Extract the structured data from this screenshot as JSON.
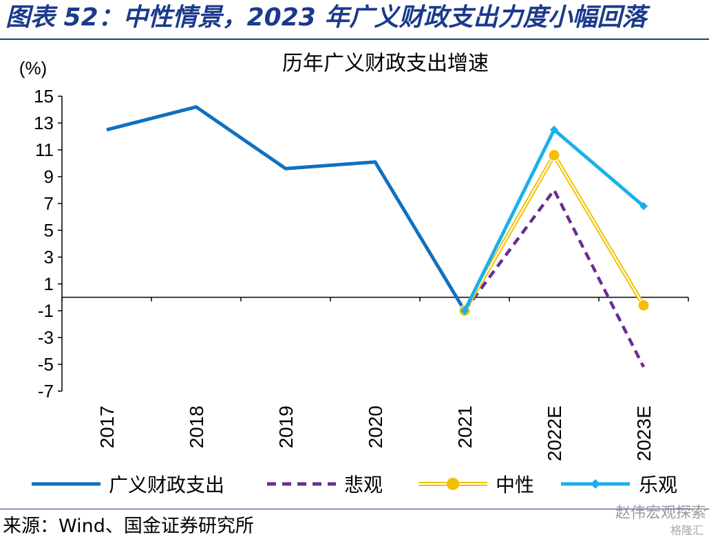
{
  "header": {
    "title": "图表 52：中性情景，2023 年广义财政支出力度小幅回落"
  },
  "footer": {
    "source": "来源：Wind、国金证券研究所",
    "watermark": "赵伟宏观探索",
    "watermark_sub": "格隆汇"
  },
  "chart_data": {
    "type": "line",
    "title": "历年广义财政支出增速",
    "ylabel": "(%)",
    "xlabel": "",
    "ylim": [
      -7,
      15
    ],
    "yticks": [
      15,
      13,
      11,
      9,
      7,
      5,
      3,
      1,
      -1,
      -3,
      -5,
      -7
    ],
    "categories": [
      "2017",
      "2018",
      "2019",
      "2020",
      "2021",
      "2022E",
      "2023E"
    ],
    "legend_position": "bottom",
    "series": [
      {
        "name": "广义财政支出",
        "color": "#1070c0",
        "style": "solid",
        "marker": "none",
        "values": [
          12.5,
          14.2,
          9.6,
          10.1,
          -1.0,
          null,
          null
        ]
      },
      {
        "name": "悲观",
        "color": "#6b2c91",
        "style": "dashed",
        "marker": "none",
        "values": [
          null,
          null,
          null,
          null,
          -1.0,
          8.0,
          -5.2
        ]
      },
      {
        "name": "中性",
        "color": "#f2c000",
        "style": "double",
        "marker": "circle",
        "values": [
          null,
          null,
          null,
          null,
          -1.0,
          10.6,
          -0.6
        ]
      },
      {
        "name": "乐观",
        "color": "#1ab0ec",
        "style": "solid",
        "marker": "diamond",
        "values": [
          null,
          null,
          null,
          null,
          -1.0,
          12.5,
          6.8
        ]
      }
    ]
  }
}
